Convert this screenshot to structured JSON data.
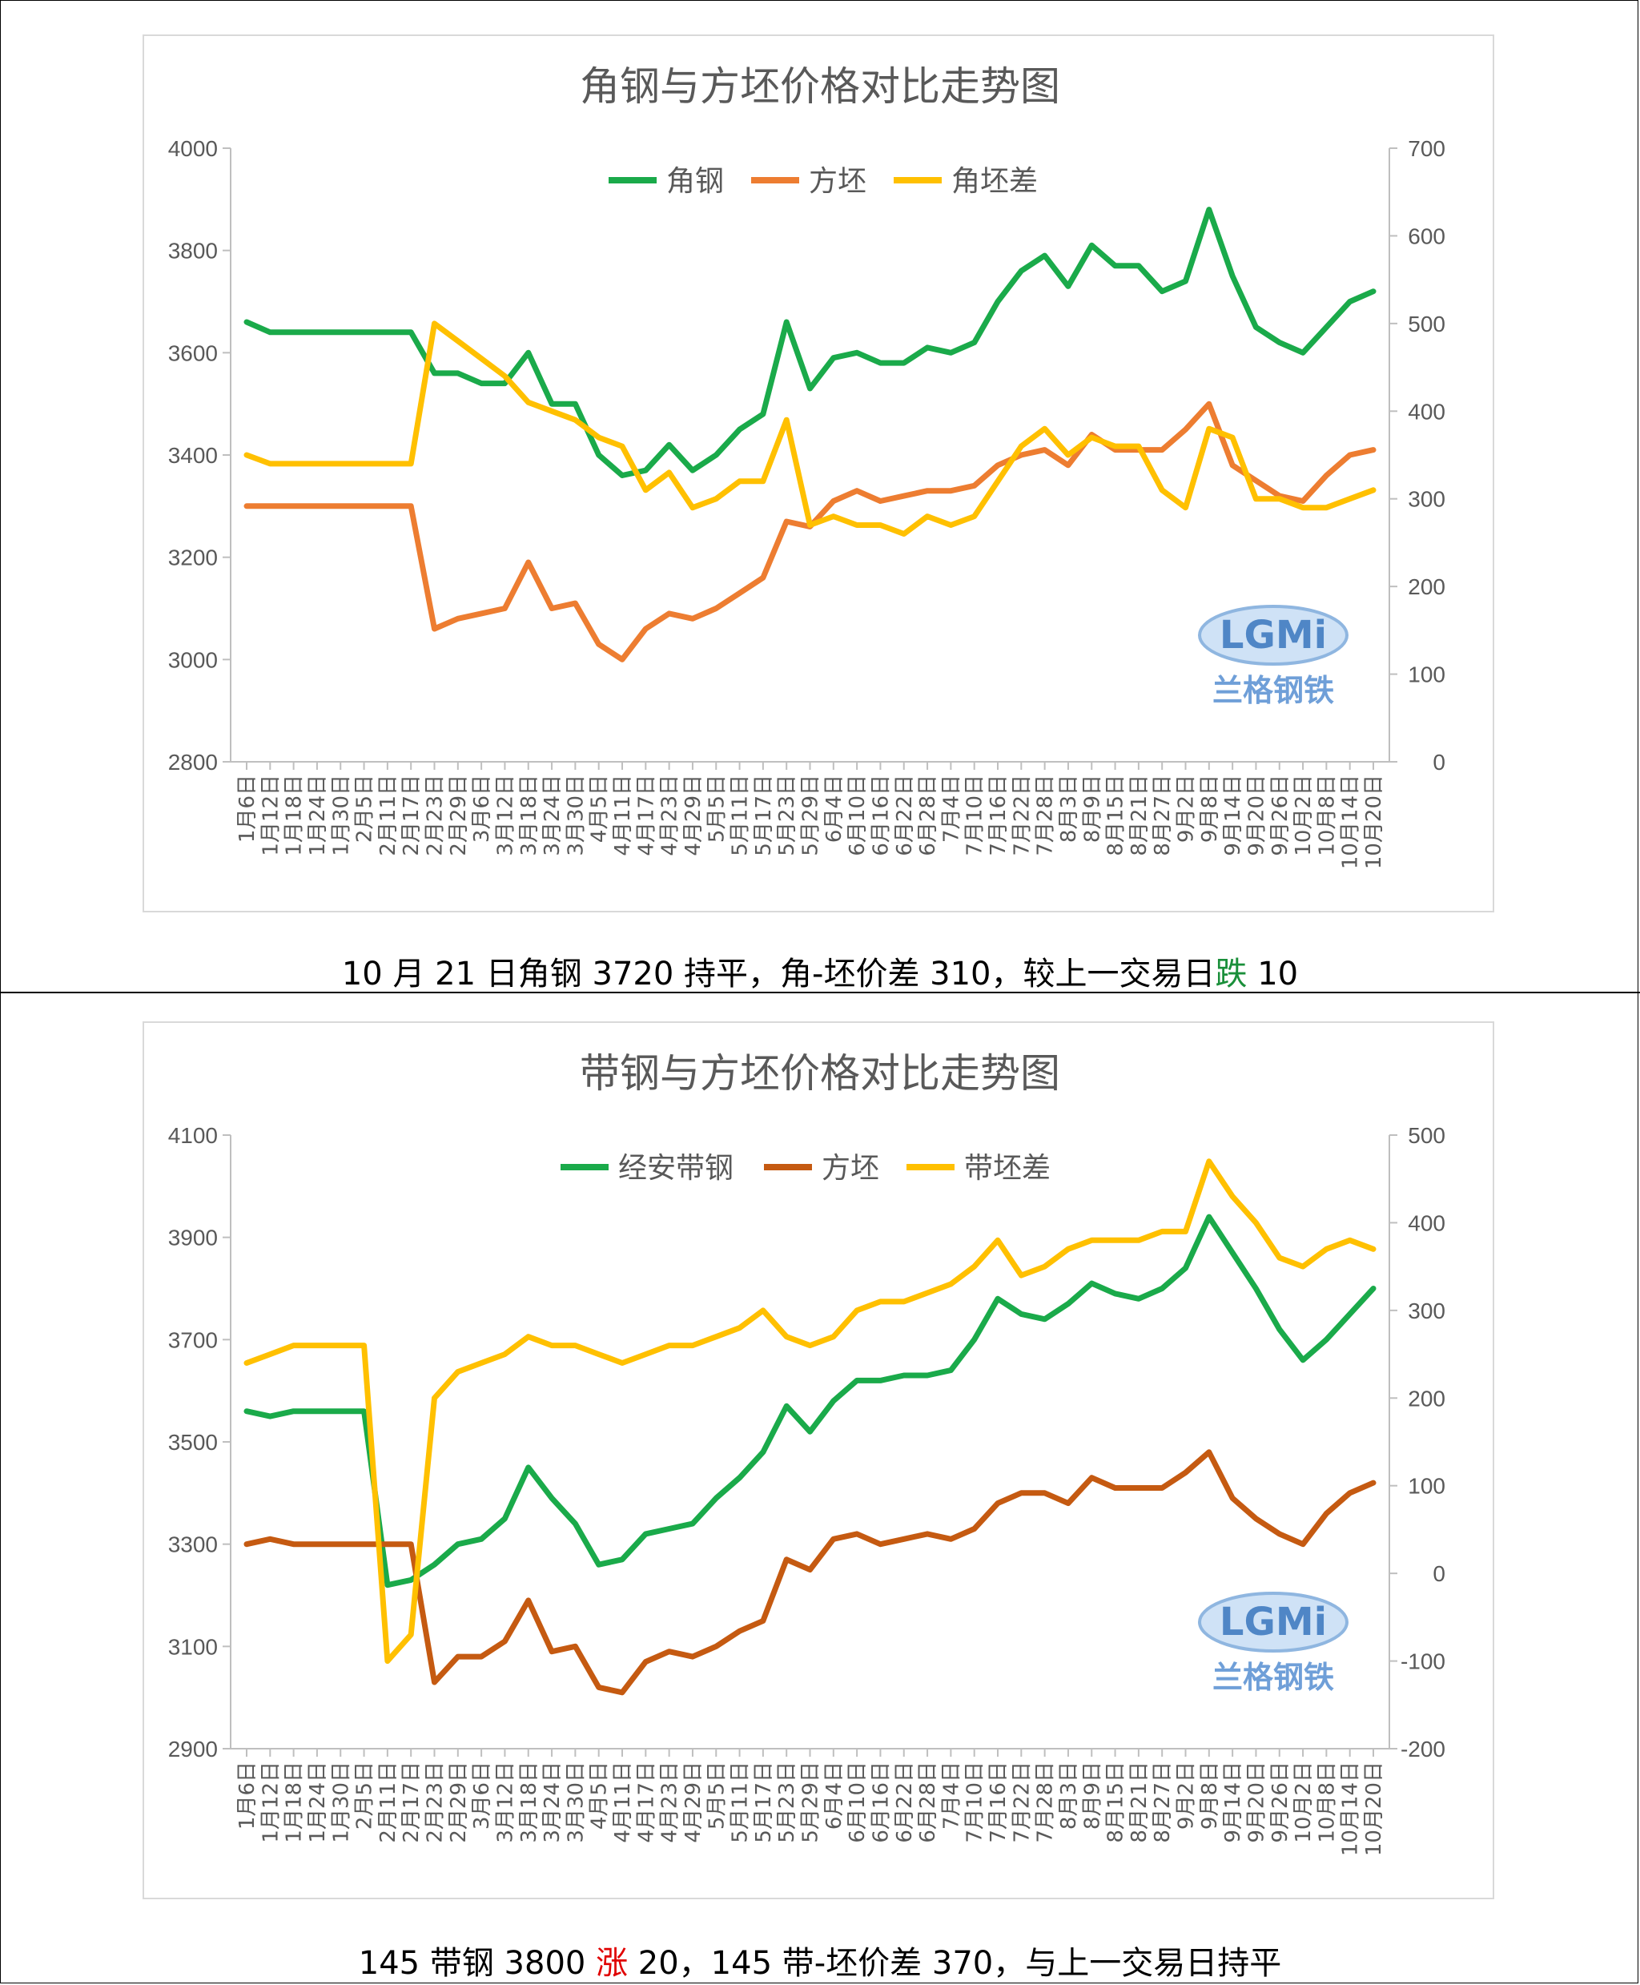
{
  "captions": [
    {
      "before": "10 月 21 日角钢 3720  持平，角-坯价差 310，较上一交易日",
      "change_word": "跌",
      "change_color": "#1a8f3a",
      "after": " 10"
    },
    {
      "before": "145 带钢 3800 ",
      "change_word": "涨",
      "change_color": "#e00000",
      "after": " 20，145 带-坯价差 370，与上一交易日持平"
    }
  ],
  "watermark": {
    "logo_text": "LGMi",
    "name_text": "兰格钢铁"
  },
  "chart_data": [
    {
      "type": "line",
      "title": "角钢与方坯价格对比走势图",
      "x_labels": [
        "1月6日",
        "1月12日",
        "1月18日",
        "1月24日",
        "1月30日",
        "2月5日",
        "2月11日",
        "2月17日",
        "2月23日",
        "2月29日",
        "3月6日",
        "3月12日",
        "3月18日",
        "3月24日",
        "3月30日",
        "4月5日",
        "4月11日",
        "4月17日",
        "4月23日",
        "4月29日",
        "5月5日",
        "5月11日",
        "5月17日",
        "5月23日",
        "5月29日",
        "6月4日",
        "6月10日",
        "6月16日",
        "6月22日",
        "6月28日",
        "7月4日",
        "7月10日",
        "7月16日",
        "7月22日",
        "7月28日",
        "8月3日",
        "8月9日",
        "8月15日",
        "8月21日",
        "8月27日",
        "9月2日",
        "9月8日",
        "9月14日",
        "9月20日",
        "9月26日",
        "10月2日",
        "10月8日",
        "10月14日",
        "10月20日"
      ],
      "left_axis": {
        "min": 2800,
        "max": 4000,
        "ticks": [
          2800,
          3000,
          3200,
          3400,
          3600,
          3800,
          4000
        ]
      },
      "right_axis": {
        "min": 0,
        "max": 700,
        "ticks": [
          0,
          100,
          200,
          300,
          400,
          500,
          600,
          700
        ]
      },
      "legend_position": "top-center",
      "series": [
        {
          "name": "角钢",
          "color": "#1aaa4a",
          "axis": "left",
          "values": [
            3660,
            3640,
            3640,
            3640,
            3640,
            3640,
            3640,
            3640,
            3560,
            3560,
            3540,
            3540,
            3600,
            3500,
            3500,
            3400,
            3360,
            3370,
            3420,
            3370,
            3400,
            3450,
            3480,
            3660,
            3530,
            3590,
            3600,
            3580,
            3580,
            3610,
            3600,
            3620,
            3700,
            3760,
            3790,
            3730,
            3810,
            3770,
            3770,
            3720,
            3740,
            3880,
            3750,
            3650,
            3620,
            3600,
            3650,
            3700,
            3720
          ]
        },
        {
          "name": "方坯",
          "color": "#ed7d31",
          "axis": "left",
          "values": [
            3300,
            3300,
            3300,
            3300,
            3300,
            3300,
            3300,
            3300,
            3060,
            3080,
            3090,
            3100,
            3190,
            3100,
            3110,
            3030,
            3000,
            3060,
            3090,
            3080,
            3100,
            3130,
            3160,
            3270,
            3260,
            3310,
            3330,
            3310,
            3320,
            3330,
            3330,
            3340,
            3380,
            3400,
            3410,
            3380,
            3440,
            3410,
            3410,
            3410,
            3450,
            3500,
            3380,
            3350,
            3320,
            3310,
            3360,
            3400,
            3410
          ]
        },
        {
          "name": "角坯差",
          "color": "#ffc000",
          "axis": "right",
          "values": [
            350,
            340,
            340,
            340,
            340,
            340,
            340,
            340,
            500,
            480,
            460,
            440,
            410,
            400,
            390,
            370,
            360,
            310,
            330,
            290,
            300,
            320,
            320,
            390,
            270,
            280,
            270,
            270,
            260,
            280,
            270,
            280,
            320,
            360,
            380,
            350,
            370,
            360,
            360,
            310,
            290,
            380,
            370,
            300,
            300,
            290,
            290,
            300,
            310
          ]
        }
      ]
    },
    {
      "type": "line",
      "title": "带钢与方坯价格对比走势图",
      "x_labels": [
        "1月6日",
        "1月12日",
        "1月18日",
        "1月24日",
        "1月30日",
        "2月5日",
        "2月11日",
        "2月17日",
        "2月23日",
        "2月29日",
        "3月6日",
        "3月12日",
        "3月18日",
        "3月24日",
        "3月30日",
        "4月5日",
        "4月11日",
        "4月17日",
        "4月23日",
        "4月29日",
        "5月5日",
        "5月11日",
        "5月17日",
        "5月23日",
        "5月29日",
        "6月4日",
        "6月10日",
        "6月16日",
        "6月22日",
        "6月28日",
        "7月4日",
        "7月10日",
        "7月16日",
        "7月22日",
        "7月28日",
        "8月3日",
        "8月9日",
        "8月15日",
        "8月21日",
        "8月27日",
        "9月2日",
        "9月8日",
        "9月14日",
        "9月20日",
        "9月26日",
        "10月2日",
        "10月8日",
        "10月14日",
        "10月20日"
      ],
      "left_axis": {
        "min": 2900,
        "max": 4100,
        "ticks": [
          2900,
          3100,
          3300,
          3500,
          3700,
          3900,
          4100
        ]
      },
      "right_axis": {
        "min": -200,
        "max": 500,
        "ticks": [
          -200,
          -100,
          0,
          100,
          200,
          300,
          400,
          500
        ]
      },
      "legend_position": "top-center",
      "series": [
        {
          "name": "经安带钢",
          "color": "#1aaa4a",
          "axis": "left",
          "values": [
            3560,
            3550,
            3560,
            3560,
            3560,
            3560,
            3220,
            3230,
            3260,
            3300,
            3310,
            3350,
            3450,
            3390,
            3340,
            3260,
            3270,
            3320,
            3330,
            3340,
            3390,
            3430,
            3480,
            3570,
            3520,
            3580,
            3620,
            3620,
            3630,
            3630,
            3640,
            3700,
            3780,
            3750,
            3740,
            3770,
            3810,
            3790,
            3780,
            3800,
            3840,
            3940,
            3870,
            3800,
            3720,
            3660,
            3700,
            3750,
            3800
          ]
        },
        {
          "name": "方坯",
          "color": "#c55a11",
          "axis": "left",
          "values": [
            3300,
            3310,
            3300,
            3300,
            3300,
            3300,
            3300,
            3300,
            3030,
            3080,
            3080,
            3110,
            3190,
            3090,
            3100,
            3020,
            3010,
            3070,
            3090,
            3080,
            3100,
            3130,
            3150,
            3270,
            3250,
            3310,
            3320,
            3300,
            3310,
            3320,
            3310,
            3330,
            3380,
            3400,
            3400,
            3380,
            3430,
            3410,
            3410,
            3410,
            3440,
            3480,
            3390,
            3350,
            3320,
            3300,
            3360,
            3400,
            3420
          ]
        },
        {
          "name": "带坯差",
          "color": "#ffc000",
          "axis": "right",
          "values": [
            240,
            250,
            260,
            260,
            260,
            260,
            -100,
            -70,
            200,
            230,
            240,
            250,
            270,
            260,
            260,
            250,
            240,
            250,
            260,
            260,
            270,
            280,
            300,
            270,
            260,
            270,
            300,
            310,
            310,
            320,
            330,
            350,
            380,
            340,
            350,
            370,
            380,
            380,
            380,
            390,
            390,
            470,
            430,
            400,
            360,
            350,
            370,
            380,
            370
          ]
        }
      ]
    }
  ]
}
